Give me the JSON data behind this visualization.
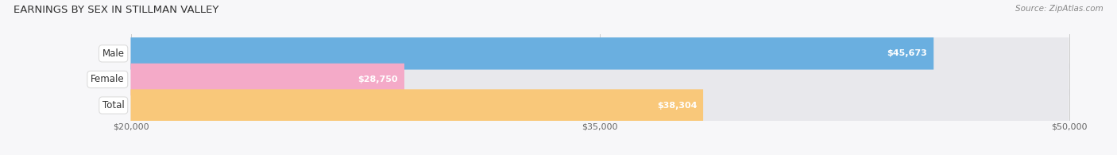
{
  "title": "EARNINGS BY SEX IN STILLMAN VALLEY",
  "source": "Source: ZipAtlas.com",
  "categories": [
    "Male",
    "Female",
    "Total"
  ],
  "values": [
    45673,
    28750,
    38304
  ],
  "bar_colors": [
    "#6aafe0",
    "#f4aac8",
    "#f9c87a"
  ],
  "bar_bg_color": "#e8e8ec",
  "x_min": 20000,
  "x_max": 50000,
  "x_ticks": [
    20000,
    35000,
    50000
  ],
  "x_tick_labels": [
    "$20,000",
    "$35,000",
    "$50,000"
  ],
  "title_fontsize": 9.5,
  "source_fontsize": 7.5,
  "value_label_fontsize": 8,
  "category_fontsize": 8.5,
  "figsize": [
    14.06,
    1.95
  ],
  "dpi": 100,
  "bg_color": "#f7f7f9"
}
